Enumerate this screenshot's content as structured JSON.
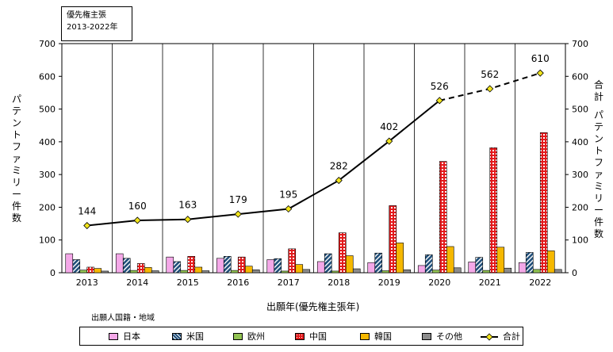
{
  "note": {
    "line1": "優先権主張",
    "line2": "2013-2022年"
  },
  "ylabel_left": "パテントファミリー件数",
  "ylabel_right_1": "合計",
  "ylabel_right_2": "パテントファミリー件数",
  "legend_caption": "出願人国籍・地域",
  "colors": {
    "日本": "#f4a8e8",
    "米国": "#1f4e79",
    "欧州": "#92c353",
    "中国": "#e31a1c",
    "韓国": "#f5b800",
    "その他": "#8c8c8c",
    "合計": "#000000",
    "marker": "#f2e51c"
  },
  "chart_data": {
    "type": "bar",
    "xlabel": "出願年(優先権主張年)",
    "ylabel": "パテントファミリー件数",
    "y2label": "合計パテントファミリー件数",
    "ylim": [
      0,
      700
    ],
    "y2lim": [
      0,
      700
    ],
    "yticks": [
      "0",
      "100",
      "200",
      "300",
      "400",
      "500",
      "600",
      "700"
    ],
    "categories": [
      "2013",
      "2014",
      "2015",
      "2016",
      "2017",
      "2018",
      "2019",
      "2020",
      "2021",
      "2022"
    ],
    "series": [
      {
        "name": "日本",
        "values": [
          58,
          58,
          48,
          44,
          40,
          34,
          31,
          22,
          33,
          31
        ]
      },
      {
        "name": "米国",
        "values": [
          40,
          44,
          34,
          50,
          43,
          58,
          60,
          55,
          47,
          62
        ]
      },
      {
        "name": "欧州",
        "values": [
          8,
          7,
          7,
          7,
          5,
          5,
          6,
          8,
          7,
          10
        ]
      },
      {
        "name": "中国",
        "values": [
          17,
          28,
          50,
          48,
          73,
          122,
          205,
          340,
          382,
          428
        ]
      },
      {
        "name": "韓国",
        "values": [
          13,
          16,
          17,
          20,
          25,
          52,
          91,
          80,
          78,
          67
        ]
      },
      {
        "name": "その他",
        "values": [
          5,
          6,
          6,
          9,
          10,
          12,
          9,
          15,
          14,
          10
        ]
      }
    ],
    "line": {
      "name": "合計",
      "values": [
        144,
        160,
        163,
        179,
        195,
        282,
        402,
        526,
        562,
        610
      ],
      "labels": [
        "144",
        "160",
        "163",
        "179",
        "195",
        "282",
        "402",
        "526",
        "562",
        "610"
      ],
      "dashed_from": "2020"
    },
    "legend": [
      "日本",
      "米国",
      "欧州",
      "中国",
      "韓国",
      "その他",
      "合計"
    ],
    "legend_position": "bottom",
    "grid": "vertical"
  }
}
